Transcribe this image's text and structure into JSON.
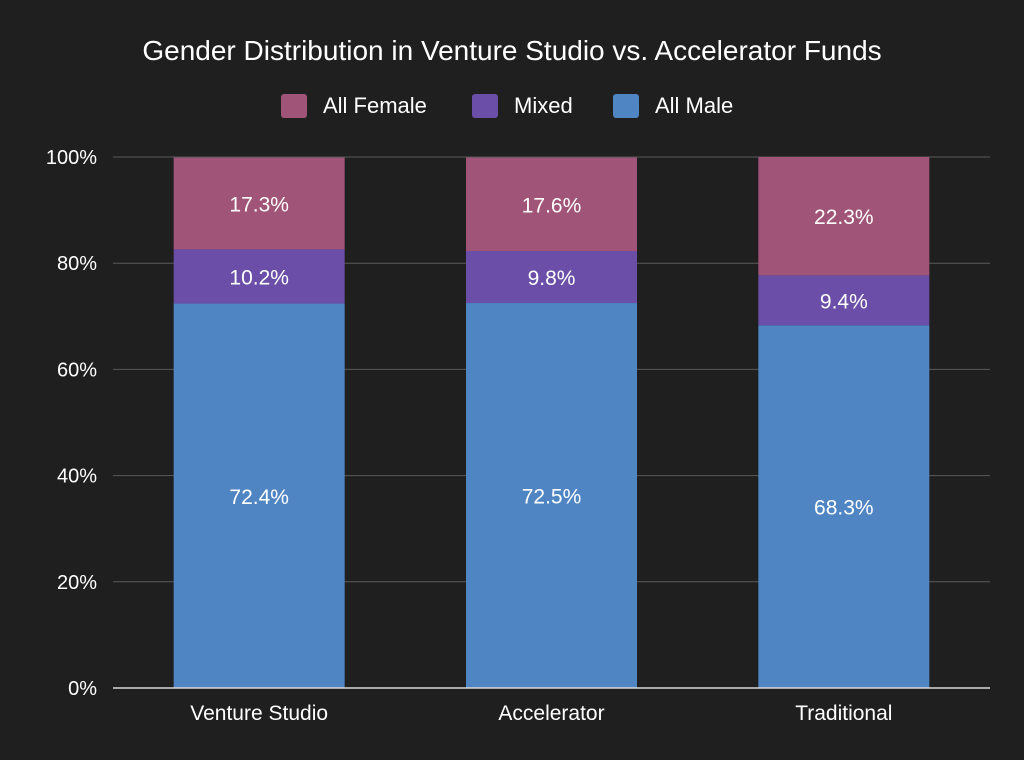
{
  "chart_data": {
    "type": "bar",
    "stacked": true,
    "title": "Gender Distribution in Venture Studio vs. Accelerator Funds",
    "categories": [
      "Venture Studio",
      "Accelerator",
      "Traditional"
    ],
    "series": [
      {
        "name": "All Male",
        "color": "#5085c3",
        "values": [
          72.4,
          72.5,
          68.3
        ],
        "labels": [
          "72.4%",
          "72.5%",
          "68.3%"
        ]
      },
      {
        "name": "Mixed",
        "color": "#6a4ea7",
        "values": [
          10.2,
          9.8,
          9.4
        ],
        "labels": [
          "10.2%",
          "9.8%",
          "9.4%"
        ]
      },
      {
        "name": "All Female",
        "color": "#a05478",
        "values": [
          17.3,
          17.6,
          22.3
        ],
        "labels": [
          "17.3%",
          "17.6%",
          "22.3%"
        ]
      }
    ],
    "legend_order": [
      "All Female",
      "Mixed",
      "All Male"
    ],
    "legend_position": "top",
    "ylim": [
      0,
      100
    ],
    "yticks": [
      0,
      20,
      40,
      60,
      80,
      100
    ],
    "ytick_labels": [
      "0%",
      "20%",
      "40%",
      "60%",
      "80%",
      "100%"
    ],
    "grid": true,
    "colors": {
      "background": "#1f1f1f",
      "text": "#ffffff",
      "gridline": "#5a5a5a",
      "baseline": "#d9d9d9"
    }
  }
}
